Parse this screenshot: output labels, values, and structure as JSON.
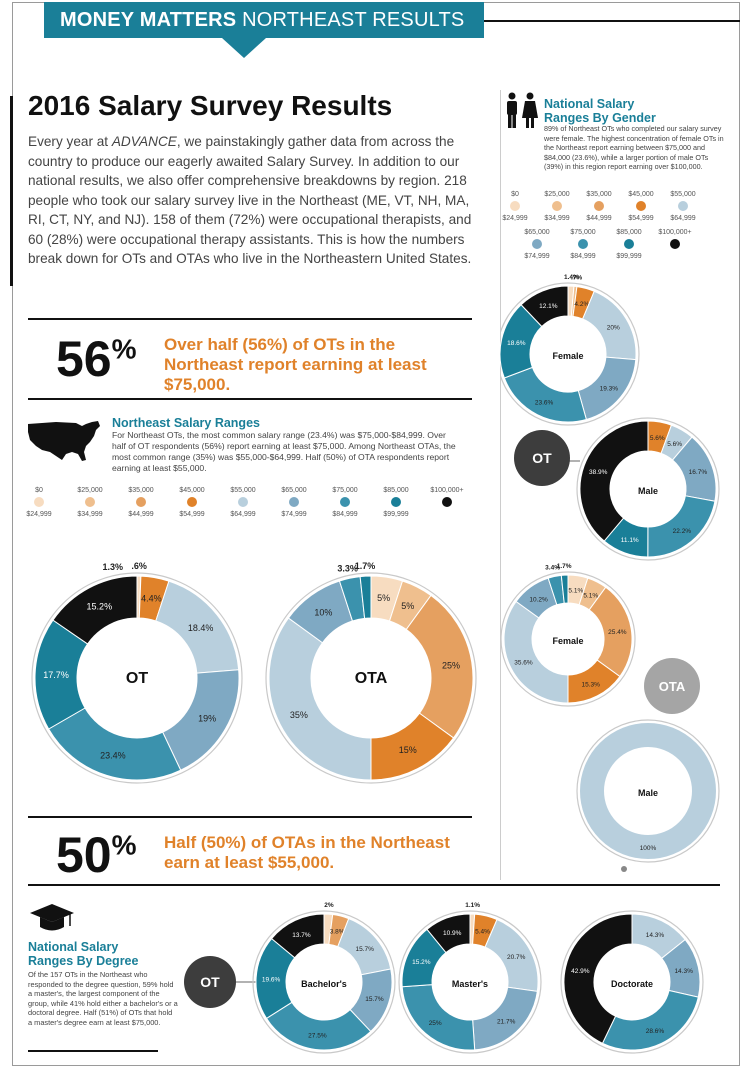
{
  "banner": {
    "bold": "MONEY MATTERS",
    "rest": "NORTHEAST RESULTS"
  },
  "title": "2016 Salary Survey Results",
  "intro": {
    "before": "Every year at ",
    "brand": "ADVANCE",
    "after": ", we painstakingly gather data from across the country to produce our eagerly awaited Salary Survey. In addition to our national results, we also offer comprehensive breakdowns by region. 218 people who took our salary survey live in the Northeast (ME, VT, NH, MA, RI, CT, NY, and NJ). 158 of them (72%) were occupational therapists, and 60 (28%) were occupational therapy assistants. This is how the numbers break down for OTs and OTAs who live in the Northeastern United States."
  },
  "stat1": {
    "number": "56",
    "unit": "%",
    "text": "Over half (56%) of OTs in the Northeast report earning at least $75,000."
  },
  "stat2": {
    "number": "50",
    "unit": "%",
    "text": "Half (50%) of OTAs in the Northeast earn at least $55,000."
  },
  "ranges": {
    "title": "Northeast Salary Ranges",
    "text": "For Northeast OTs, the most common salary range (23.4%) was $75,000-$84,999. Over half of OT respondents (56%) report earning at least $75,000. Among Northeast OTAs, the most common range (35%) was $55,000-$64,999. Half (50%) of OTA respondents report earning at least $55,000."
  },
  "gender": {
    "title_line1": "National Salary",
    "title_line2": "Ranges By Gender",
    "text": "89% of Northeast OTs who completed our salary survey were female. The highest concentration of female OTs in the Northeast report earning between $75,000 and $84,000 (23.6%), while a larger portion of male OTs (39%) in this region report earning over $100,000."
  },
  "degree": {
    "title_line1": "National Salary",
    "title_line2": "Ranges By Degree",
    "text": "Of the 157 OTs in the Northeast who responded to the degree question, 59% hold a master's, the largest component of the group, while 41% hold either a bachelor's or a doctoral degree. Half (51%) of OTs that hold a master's degree earn at least $75,000."
  },
  "labels": {
    "ot": "OT",
    "ota": "OTA",
    "female": "Female",
    "male": "Male",
    "bachelors": "Bachelor's",
    "masters": "Master's",
    "doctorate": "Doctorate"
  },
  "legend": [
    {
      "top": "$0",
      "bottom": "$24,999",
      "color": "#f7dcc0"
    },
    {
      "top": "$25,000",
      "bottom": "$34,999",
      "color": "#efbf8e"
    },
    {
      "top": "$35,000",
      "bottom": "$44,999",
      "color": "#e5a060"
    },
    {
      "top": "$45,000",
      "bottom": "$54,999",
      "color": "#e0822a"
    },
    {
      "top": "$55,000",
      "bottom": "$64,999",
      "color": "#b8cfdd"
    },
    {
      "top": "$65,000",
      "bottom": "$74,999",
      "color": "#7fa9c3"
    },
    {
      "top": "$75,000",
      "bottom": "$84,999",
      "color": "#3b92ad"
    },
    {
      "top": "$85,000",
      "bottom": "$99,999",
      "color": "#1a7f98"
    },
    {
      "top": "$100,000+",
      "bottom": "",
      "color": "#111111"
    }
  ],
  "chart_data": [
    {
      "type": "pie",
      "title": "OT",
      "categories": [
        "$0-$24,999",
        "$25,000-$34,999",
        "$35,000-$44,999",
        "$45,000-$54,999",
        "$55,000-$64,999",
        "$65,000-$74,999",
        "$75,000-$84,999",
        "$85,000-$99,999",
        "$100,000+"
      ],
      "values": [
        0.6,
        0,
        0,
        4.4,
        18.4,
        19,
        23.4,
        17.7,
        15.2
      ],
      "labels": [
        ".6%",
        "",
        "",
        "4.4%",
        "18.4%",
        "19%",
        "23.4%",
        "17.7%",
        "15.2%"
      ],
      "outside": "1.3%"
    },
    {
      "type": "pie",
      "title": "OTA",
      "values": [
        5,
        5,
        25,
        15,
        35,
        10,
        3.3,
        1.7,
        0
      ],
      "labels": [
        "5%",
        "5%",
        "25%",
        "15%",
        "35%",
        "10%",
        "3.3%",
        "1.7%",
        ""
      ]
    },
    {
      "type": "pie",
      "title": "OT Female",
      "values": [
        1.4,
        0.7,
        0,
        4.2,
        20,
        19.3,
        23.6,
        18.6,
        12.1
      ],
      "labels": [
        "1.4%",
        ".7%",
        "",
        "4.2%",
        "20%",
        "19.3%",
        "23.6%",
        "18.6%",
        "12.1%"
      ]
    },
    {
      "type": "pie",
      "title": "OT Male",
      "values": [
        0,
        0,
        0,
        5.6,
        5.6,
        16.7,
        22.2,
        11.1,
        38.9
      ],
      "labels": [
        "",
        "",
        "",
        "5.6%",
        "5.6%",
        "16.7%",
        "22.2%",
        "11.1%",
        "38.9%"
      ]
    },
    {
      "type": "pie",
      "title": "OTA Female",
      "values": [
        5.1,
        5.1,
        25.4,
        15.3,
        35.6,
        10.2,
        3.4,
        1.7,
        0
      ],
      "labels": [
        "5.1%",
        "5.1%",
        "25.4%",
        "15.3%",
        "35.6%",
        "10.2%",
        "3.4%",
        "1.7%",
        ""
      ]
    },
    {
      "type": "pie",
      "title": "OTA Male",
      "values": [
        0,
        0,
        0,
        0,
        100,
        0,
        0,
        0,
        0
      ],
      "labels": [
        "",
        "",
        "",
        "",
        "100%",
        "",
        "",
        "",
        ""
      ]
    },
    {
      "type": "pie",
      "title": "Bachelor's",
      "values": [
        2,
        0,
        3.8,
        0,
        15.7,
        15.7,
        27.5,
        19.6,
        13.7
      ],
      "labels": [
        "2%",
        "",
        "3.8%",
        "",
        "15.7%",
        "15.7%",
        "27.5%",
        "19.6%",
        "13.7%"
      ]
    },
    {
      "type": "pie",
      "title": "Master's",
      "values": [
        1.1,
        0,
        0,
        5.4,
        20.7,
        21.7,
        25,
        15.2,
        10.9
      ],
      "labels": [
        "1.1%",
        "",
        "",
        "5.4%",
        "20.7%",
        "21.7%",
        "25%",
        "15.2%",
        "10.9%"
      ]
    },
    {
      "type": "pie",
      "title": "Doctorate",
      "values": [
        0,
        0,
        0,
        0,
        14.3,
        14.3,
        28.6,
        0,
        42.9
      ],
      "labels": [
        "",
        "",
        "",
        "",
        "14.3%",
        "14.3%",
        "28.6%",
        "",
        "42.9%"
      ]
    }
  ]
}
